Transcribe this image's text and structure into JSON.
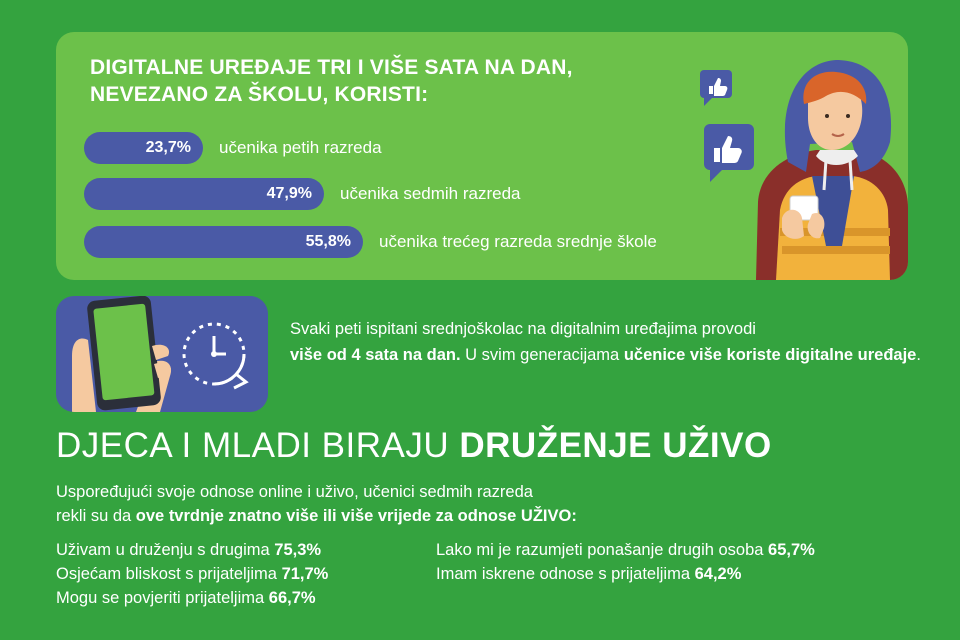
{
  "top": {
    "title_line1": "DIGITALNE UREĐAJE TRI I VIŠE SATA NA DAN,",
    "title_line2": "NEVEZANO ZA ŠKOLU, KORISTI:",
    "bars": [
      {
        "value": "23,7%",
        "label": "učenika petih razreda",
        "pct": 23.7
      },
      {
        "value": "47,9%",
        "label": "učenika sedmih razreda",
        "pct": 47.9
      },
      {
        "value": "55,8%",
        "label": "učenika trećeg razreda srednje škole",
        "pct": 55.8
      }
    ]
  },
  "middle": {
    "t1": "Svaki peti ispitani srednjoškolac na digitalnim uređajima provodi",
    "t2b": "više od 4 sata na dan.",
    "t3": " U svim generacijama ",
    "t4b": "učenice više koriste digitalne uređaje",
    "t5": "."
  },
  "heading": {
    "normal": "DJECA I MLADI BIRAJU ",
    "bold": "DRUŽENJE UŽIVO"
  },
  "intro": {
    "line1": "Uspoređujući svoje odnose online i uživo, učenici sedmih razreda",
    "line2a": "rekli su da ",
    "line2b": "ove tvrdnje znatno više ili više vrijede za odnose UŽIVO:"
  },
  "stats_left": [
    {
      "text": "Uživam u druženju s drugima ",
      "value": "75,3%"
    },
    {
      "text": "Osjećam bliskost s prijateljima ",
      "value": "71,7%"
    },
    {
      "text": "Mogu se povjeriti prijateljima ",
      "value": "66,7%"
    }
  ],
  "stats_right": [
    {
      "text": "Lako mi je razumjeti ponašanje drugih osoba ",
      "value": "65,7%"
    },
    {
      "text": "Imam iskrene odnose s prijateljima ",
      "value": "64,2%"
    }
  ],
  "colors": {
    "background": "#34a33f",
    "panel_green": "#6cc14a",
    "bar_blue": "#4a5aa6"
  },
  "icons": [
    "thumbs-up-icon",
    "smartphone-icon",
    "clock-icon",
    "hand-icon"
  ]
}
